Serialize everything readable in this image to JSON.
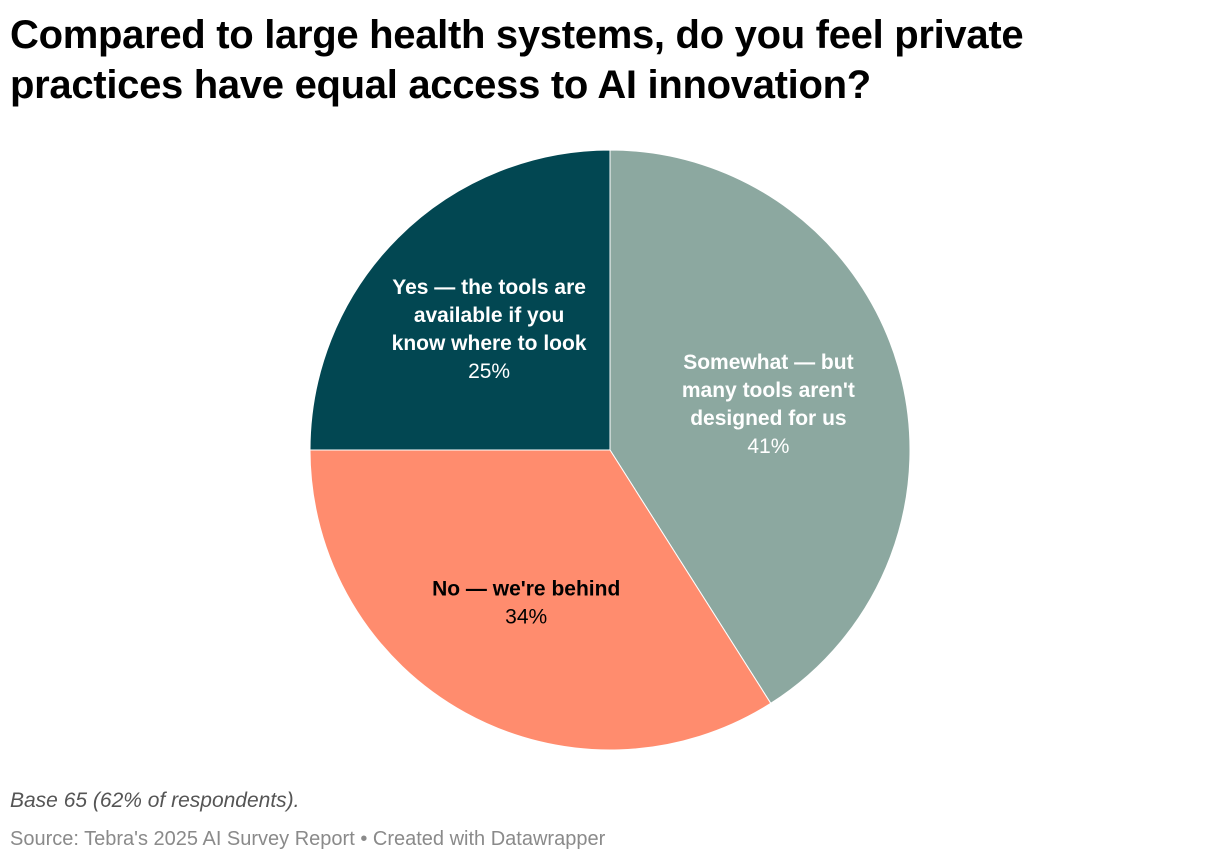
{
  "title": "Compared to large health systems, do you feel private practices have equal access to AI innovation?",
  "notes": "Base 65 (62% of respondents).",
  "footer": {
    "source_prefix": "Source: ",
    "source_name": "Tebra's 2025 AI Survey Report",
    "separator": " • ",
    "credit": "Created with Datawrapper"
  },
  "chart_data": {
    "type": "pie",
    "title": "Compared to large health systems, do you feel private practices have equal access to AI innovation?",
    "start": "12 o'clock, clockwise",
    "slices": [
      {
        "label": "Somewhat — but many tools aren't designed for us",
        "label_lines": [
          "Somewhat — but",
          "many tools aren't",
          "designed for us"
        ],
        "value": 41,
        "value_label": "41%",
        "color": "#8ca8a0",
        "text_color": "#ffffff"
      },
      {
        "label": "No — we're behind",
        "label_lines": [
          "No — we're behind"
        ],
        "value": 34,
        "value_label": "34%",
        "color": "#ff8c6e",
        "text_color": "#000000"
      },
      {
        "label": "Yes — the tools are available if you know where to look",
        "label_lines": [
          "Yes — the tools are",
          "available if you",
          "know where to look"
        ],
        "value": 25,
        "value_label": "25%",
        "color": "#024752",
        "text_color": "#ffffff"
      }
    ]
  }
}
